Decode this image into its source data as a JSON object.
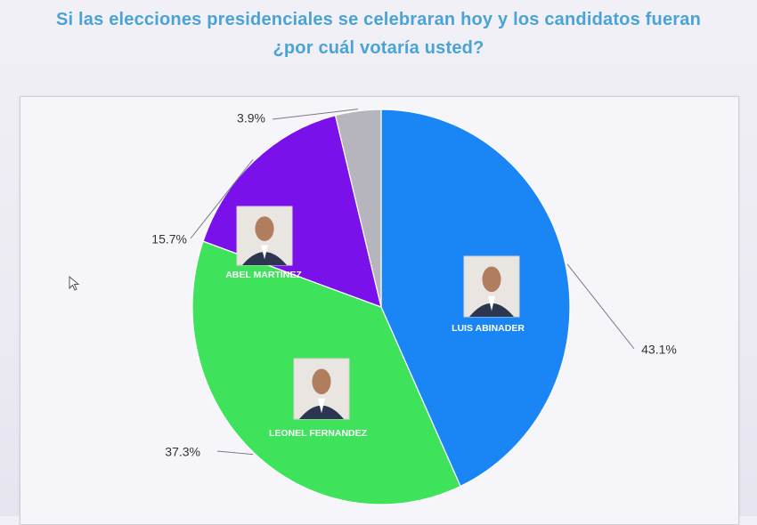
{
  "title": {
    "line1": "Si las elecciones presidenciales se celebraran hoy y los candidatos fueran",
    "line2": "¿por cuál votaría usted?"
  },
  "chart_data": {
    "type": "pie",
    "slices": [
      {
        "name": "LUIS ABINADER",
        "value": 43.1,
        "label": "43.1%",
        "color": "#1a86f5",
        "name_color": "#ffffff"
      },
      {
        "name": "LEONEL FERNANDEZ",
        "value": 37.3,
        "label": "37.3%",
        "color": "#3ee25b",
        "name_color": "#ffffff"
      },
      {
        "name": "ABEL MARTINEZ",
        "value": 15.7,
        "label": "15.7%",
        "color": "#7a10ea",
        "name_color": "#ffffff"
      },
      {
        "name": "",
        "value": 3.9,
        "label": "3.9%",
        "color": "#b6b5bd",
        "name_color": "#ffffff"
      }
    ],
    "start_angle_deg": 0,
    "direction": "clockwise"
  }
}
